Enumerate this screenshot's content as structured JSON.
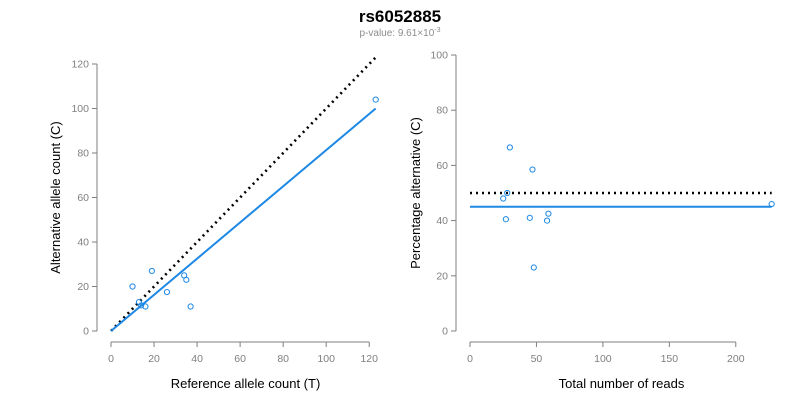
{
  "header": {
    "title": "rs6052885",
    "pvalue_prefix": "p-value: 9.61×10",
    "pvalue_exponent": "-3"
  },
  "colors": {
    "fit_line": "#1e88e5",
    "points": "#1e88e5",
    "reference_line": "#000000",
    "axis": "#7f7f7f",
    "tick_text": "#7f7f7f"
  },
  "chart_data": [
    {
      "type": "scatter",
      "xlabel": "Reference allele count (T)",
      "ylabel": "Alternative allele count (C)",
      "xlim": [
        0,
        125
      ],
      "ylim": [
        0,
        120
      ],
      "xticks": [
        0,
        20,
        40,
        60,
        80,
        100,
        120
      ],
      "yticks": [
        0,
        20,
        40,
        60,
        80,
        100,
        120
      ],
      "grid": false,
      "points": [
        {
          "x": 10,
          "y": 20
        },
        {
          "x": 13,
          "y": 13
        },
        {
          "x": 14,
          "y": 11.5
        },
        {
          "x": 16,
          "y": 11
        },
        {
          "x": 19,
          "y": 27
        },
        {
          "x": 26,
          "y": 17.5
        },
        {
          "x": 34,
          "y": 25
        },
        {
          "x": 35,
          "y": 23
        },
        {
          "x": 37,
          "y": 11
        },
        {
          "x": 123,
          "y": 104
        }
      ],
      "reference_line": {
        "style": "dotted",
        "x": [
          0,
          123
        ],
        "y": [
          0,
          123
        ]
      },
      "fit_line": {
        "style": "solid",
        "x": [
          0,
          123
        ],
        "y": [
          0,
          100
        ]
      }
    },
    {
      "type": "scatter",
      "xlabel": "Total number of reads",
      "ylabel": "Percentage alternative (C)",
      "xlim": [
        0,
        228
      ],
      "ylim": [
        0,
        100
      ],
      "xticks": [
        0,
        50,
        100,
        150,
        200
      ],
      "yticks": [
        0,
        20,
        40,
        60,
        80,
        100
      ],
      "grid": false,
      "points": [
        {
          "x": 25,
          "y": 48
        },
        {
          "x": 27,
          "y": 40.5
        },
        {
          "x": 28,
          "y": 50
        },
        {
          "x": 30,
          "y": 66.5
        },
        {
          "x": 45,
          "y": 41
        },
        {
          "x": 47,
          "y": 58.5
        },
        {
          "x": 48,
          "y": 23
        },
        {
          "x": 58,
          "y": 40
        },
        {
          "x": 59,
          "y": 42.5
        },
        {
          "x": 227,
          "y": 46
        }
      ],
      "reference_line": {
        "style": "dotted",
        "x": [
          0,
          227
        ],
        "y": [
          50,
          50
        ]
      },
      "fit_line": {
        "style": "solid",
        "x": [
          0,
          227
        ],
        "y": [
          45,
          45
        ]
      }
    }
  ]
}
